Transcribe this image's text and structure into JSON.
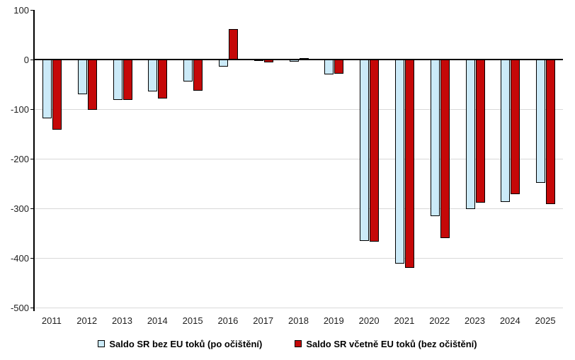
{
  "chart_data": {
    "type": "bar",
    "title": "",
    "xlabel": "",
    "ylabel": "",
    "categories": [
      "2011",
      "2012",
      "2013",
      "2014",
      "2015",
      "2016",
      "2017",
      "2018",
      "2019",
      "2020",
      "2021",
      "2022",
      "2023",
      "2024",
      "2025"
    ],
    "series": [
      {
        "name": "Saldo SR bez EU toků (po očištění)",
        "color": "#CBEAF8",
        "values": [
          -118,
          -70,
          -81,
          -64,
          -44,
          -14,
          -2,
          -4,
          -30,
          -365,
          -411,
          -316,
          -301,
          -287,
          -249
        ]
      },
      {
        "name": "Saldo SR včetně EU toků (bez očištění)",
        "color": "#C50808",
        "values": [
          -142,
          -101,
          -82,
          -78,
          -63,
          62,
          -6,
          3,
          -28,
          -367,
          -420,
          -360,
          -288,
          -271,
          -292
        ]
      }
    ],
    "ylim": [
      -500,
      100
    ],
    "yticks": [
      100,
      0,
      -100,
      -200,
      -300,
      -400,
      -500
    ],
    "grid": true,
    "legend_position": "bottom"
  }
}
